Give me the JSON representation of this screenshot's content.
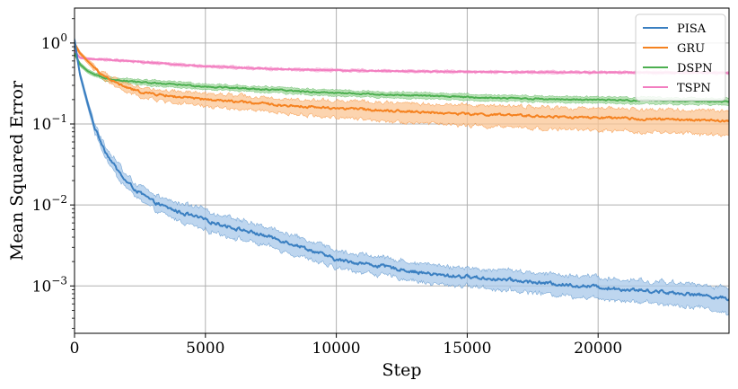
{
  "chart_data": {
    "type": "line",
    "xlabel": "Step",
    "ylabel": "Mean Squared Error",
    "xlim": [
      0,
      25000
    ],
    "ylim": [
      0.00026,
      2.7
    ],
    "yscale": "log",
    "grid": true,
    "legend_position": "top-right",
    "x_ticks": [
      {
        "value": 0,
        "label": "0"
      },
      {
        "value": 5000,
        "label": "5000"
      },
      {
        "value": 10000,
        "label": "10000"
      },
      {
        "value": 15000,
        "label": "15000"
      },
      {
        "value": 20000,
        "label": "20000"
      }
    ],
    "y_ticks": [
      {
        "value": 1,
        "base": "10",
        "exp": "0"
      },
      {
        "value": 0.1,
        "base": "10",
        "exp": "−1"
      },
      {
        "value": 0.01,
        "base": "10",
        "exp": "−2"
      },
      {
        "value": 0.001,
        "base": "10",
        "exp": "−3"
      }
    ],
    "series": [
      {
        "name": "PISA",
        "color": "#3a7fc1",
        "band_color": "#a8c8ea",
        "x": [
          0,
          200,
          500,
          800,
          1200,
          1600,
          2000,
          2500,
          3000,
          3500,
          4000,
          5000,
          6000,
          7000,
          8000,
          9000,
          10000,
          11000,
          12000,
          13000,
          14000,
          15000,
          16000,
          17000,
          18000,
          19000,
          20000,
          21000,
          22000,
          23000,
          24000,
          25000
        ],
        "y": [
          1.1,
          0.42,
          0.18,
          0.085,
          0.045,
          0.028,
          0.019,
          0.014,
          0.011,
          0.0093,
          0.0082,
          0.0065,
          0.0053,
          0.0044,
          0.0036,
          0.0028,
          0.0021,
          0.0019,
          0.0017,
          0.0015,
          0.00135,
          0.0013,
          0.00122,
          0.00115,
          0.00108,
          0.00102,
          0.00097,
          0.00091,
          0.00087,
          0.00082,
          0.00077,
          0.00069
        ],
        "lower": [
          1.0,
          0.38,
          0.16,
          0.074,
          0.038,
          0.023,
          0.016,
          0.0115,
          0.0088,
          0.0074,
          0.0064,
          0.0049,
          0.004,
          0.0033,
          0.0027,
          0.0021,
          0.00165,
          0.00148,
          0.00132,
          0.00115,
          0.00104,
          0.001,
          0.00092,
          0.00086,
          0.0008,
          0.00075,
          0.00071,
          0.00066,
          0.00062,
          0.00058,
          0.00054,
          0.00045
        ],
        "upper": [
          1.2,
          0.46,
          0.2,
          0.097,
          0.053,
          0.034,
          0.023,
          0.017,
          0.0137,
          0.0117,
          0.0105,
          0.0085,
          0.007,
          0.0058,
          0.0047,
          0.0037,
          0.0027,
          0.00245,
          0.0022,
          0.00195,
          0.00175,
          0.00168,
          0.00159,
          0.0015,
          0.00142,
          0.00135,
          0.00128,
          0.0012,
          0.00115,
          0.00109,
          0.00103,
          0.00095
        ]
      },
      {
        "name": "GRU",
        "color": "#f58220",
        "band_color": "#fbc594",
        "x": [
          0,
          200,
          500,
          800,
          1200,
          1600,
          2000,
          2500,
          3000,
          4000,
          5000,
          6000,
          7000,
          8000,
          9000,
          10000,
          11000,
          12000,
          13000,
          14000,
          15000,
          16000,
          17000,
          18000,
          19000,
          20000,
          21000,
          22000,
          23000,
          24000,
          25000
        ],
        "y": [
          1.0,
          0.75,
          0.6,
          0.48,
          0.38,
          0.32,
          0.28,
          0.25,
          0.235,
          0.215,
          0.2,
          0.19,
          0.18,
          0.17,
          0.163,
          0.157,
          0.152,
          0.147,
          0.142,
          0.137,
          0.133,
          0.13,
          0.127,
          0.124,
          0.121,
          0.119,
          0.117,
          0.115,
          0.113,
          0.111,
          0.109
        ],
        "lower": [
          0.95,
          0.71,
          0.56,
          0.44,
          0.34,
          0.285,
          0.245,
          0.215,
          0.2,
          0.18,
          0.165,
          0.155,
          0.145,
          0.135,
          0.127,
          0.12,
          0.114,
          0.109,
          0.104,
          0.1,
          0.096,
          0.093,
          0.09,
          0.087,
          0.085,
          0.083,
          0.081,
          0.079,
          0.077,
          0.075,
          0.073
        ],
        "upper": [
          1.05,
          0.79,
          0.64,
          0.52,
          0.42,
          0.36,
          0.315,
          0.285,
          0.27,
          0.25,
          0.235,
          0.225,
          0.215,
          0.205,
          0.198,
          0.193,
          0.19,
          0.185,
          0.18,
          0.175,
          0.17,
          0.167,
          0.164,
          0.161,
          0.158,
          0.155,
          0.153,
          0.151,
          0.149,
          0.147,
          0.145
        ]
      },
      {
        "name": "DSPN",
        "color": "#4caf50",
        "band_color": "#a6d9a1",
        "x": [
          0,
          200,
          500,
          800,
          1200,
          1600,
          2000,
          2500,
          3000,
          4000,
          5000,
          6000,
          7000,
          8000,
          9000,
          10000,
          11000,
          12000,
          13000,
          14000,
          15000,
          16000,
          17000,
          18000,
          19000,
          20000,
          21000,
          22000,
          23000,
          24000,
          25000
        ],
        "y": [
          0.75,
          0.55,
          0.45,
          0.4,
          0.37,
          0.35,
          0.34,
          0.33,
          0.32,
          0.305,
          0.29,
          0.28,
          0.27,
          0.26,
          0.25,
          0.243,
          0.236,
          0.23,
          0.225,
          0.22,
          0.215,
          0.211,
          0.207,
          0.204,
          0.201,
          0.198,
          0.196,
          0.194,
          0.192,
          0.19,
          0.188
        ],
        "lower": [
          0.71,
          0.52,
          0.425,
          0.375,
          0.345,
          0.325,
          0.315,
          0.305,
          0.295,
          0.28,
          0.267,
          0.258,
          0.248,
          0.238,
          0.229,
          0.222,
          0.216,
          0.21,
          0.205,
          0.2,
          0.196,
          0.192,
          0.189,
          0.186,
          0.183,
          0.18,
          0.178,
          0.176,
          0.174,
          0.172,
          0.171
        ],
        "upper": [
          0.79,
          0.58,
          0.475,
          0.425,
          0.395,
          0.375,
          0.365,
          0.355,
          0.345,
          0.33,
          0.315,
          0.303,
          0.292,
          0.282,
          0.271,
          0.264,
          0.256,
          0.25,
          0.245,
          0.24,
          0.234,
          0.23,
          0.226,
          0.222,
          0.219,
          0.216,
          0.214,
          0.212,
          0.21,
          0.208,
          0.206
        ]
      },
      {
        "name": "TSPN",
        "color": "#f27ec0",
        "band_color": "#f9c3e2",
        "x": [
          0,
          200,
          500,
          800,
          1200,
          1600,
          2000,
          3000,
          4000,
          5000,
          6000,
          7000,
          8000,
          9000,
          10000,
          11000,
          12000,
          13000,
          14000,
          15000,
          16000,
          17000,
          18000,
          19000,
          20000,
          21000,
          22000,
          23000,
          24000,
          25000
        ],
        "y": [
          0.8,
          0.66,
          0.64,
          0.63,
          0.62,
          0.61,
          0.6,
          0.57,
          0.54,
          0.515,
          0.5,
          0.485,
          0.475,
          0.467,
          0.46,
          0.455,
          0.45,
          0.447,
          0.444,
          0.441,
          0.439,
          0.437,
          0.436,
          0.435,
          0.434,
          0.433,
          0.432,
          0.431,
          0.43,
          0.43
        ],
        "lower": [
          0.77,
          0.64,
          0.62,
          0.61,
          0.6,
          0.59,
          0.58,
          0.55,
          0.52,
          0.497,
          0.482,
          0.468,
          0.458,
          0.45,
          0.444,
          0.439,
          0.434,
          0.431,
          0.428,
          0.425,
          0.423,
          0.421,
          0.42,
          0.419,
          0.418,
          0.417,
          0.416,
          0.415,
          0.414,
          0.414
        ],
        "upper": [
          0.83,
          0.68,
          0.66,
          0.65,
          0.64,
          0.63,
          0.62,
          0.59,
          0.56,
          0.533,
          0.518,
          0.502,
          0.492,
          0.484,
          0.477,
          0.471,
          0.466,
          0.463,
          0.46,
          0.457,
          0.455,
          0.453,
          0.452,
          0.451,
          0.45,
          0.449,
          0.448,
          0.447,
          0.446,
          0.446
        ]
      }
    ]
  }
}
